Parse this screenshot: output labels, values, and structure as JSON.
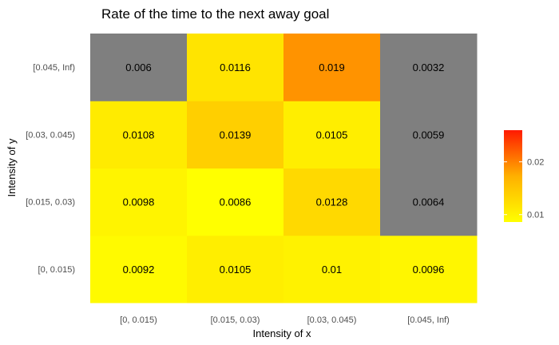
{
  "chart_data": {
    "type": "heatmap",
    "title": "Rate of the time to the next away goal",
    "xlabel": "Intensity of x",
    "ylabel": "Intensity of y",
    "x_categories": [
      "[0, 0.015)",
      "[0.015, 0.03)",
      "[0.03, 0.045)",
      "[0.045, Inf)"
    ],
    "y_categories": [
      "[0, 0.015)",
      "[0.015, 0.03)",
      "[0.03, 0.045)",
      "[0.045, Inf)"
    ],
    "values": [
      [
        "0.0092",
        "0.0105",
        "0.01",
        "0.0096"
      ],
      [
        "0.0098",
        "0.0086",
        "0.0128",
        "0.0064"
      ],
      [
        "0.0108",
        "0.0139",
        "0.0105",
        "0.0059"
      ],
      [
        "0.006",
        "0.0116",
        "0.019",
        "0.0032"
      ]
    ],
    "na_cells": [
      [
        3,
        0
      ],
      [
        3,
        3
      ],
      [
        2,
        3
      ],
      [
        1,
        3
      ]
    ],
    "na_color": "#7f7f7f",
    "color_scale": {
      "low": "#ffff00",
      "high": "#ff1a00",
      "min": 0.0086,
      "max": 0.026
    },
    "legend": {
      "ticks": [
        "0.01",
        "0.02"
      ],
      "tick_values": [
        0.01,
        0.02
      ],
      "placement": "right"
    },
    "grid": false
  }
}
